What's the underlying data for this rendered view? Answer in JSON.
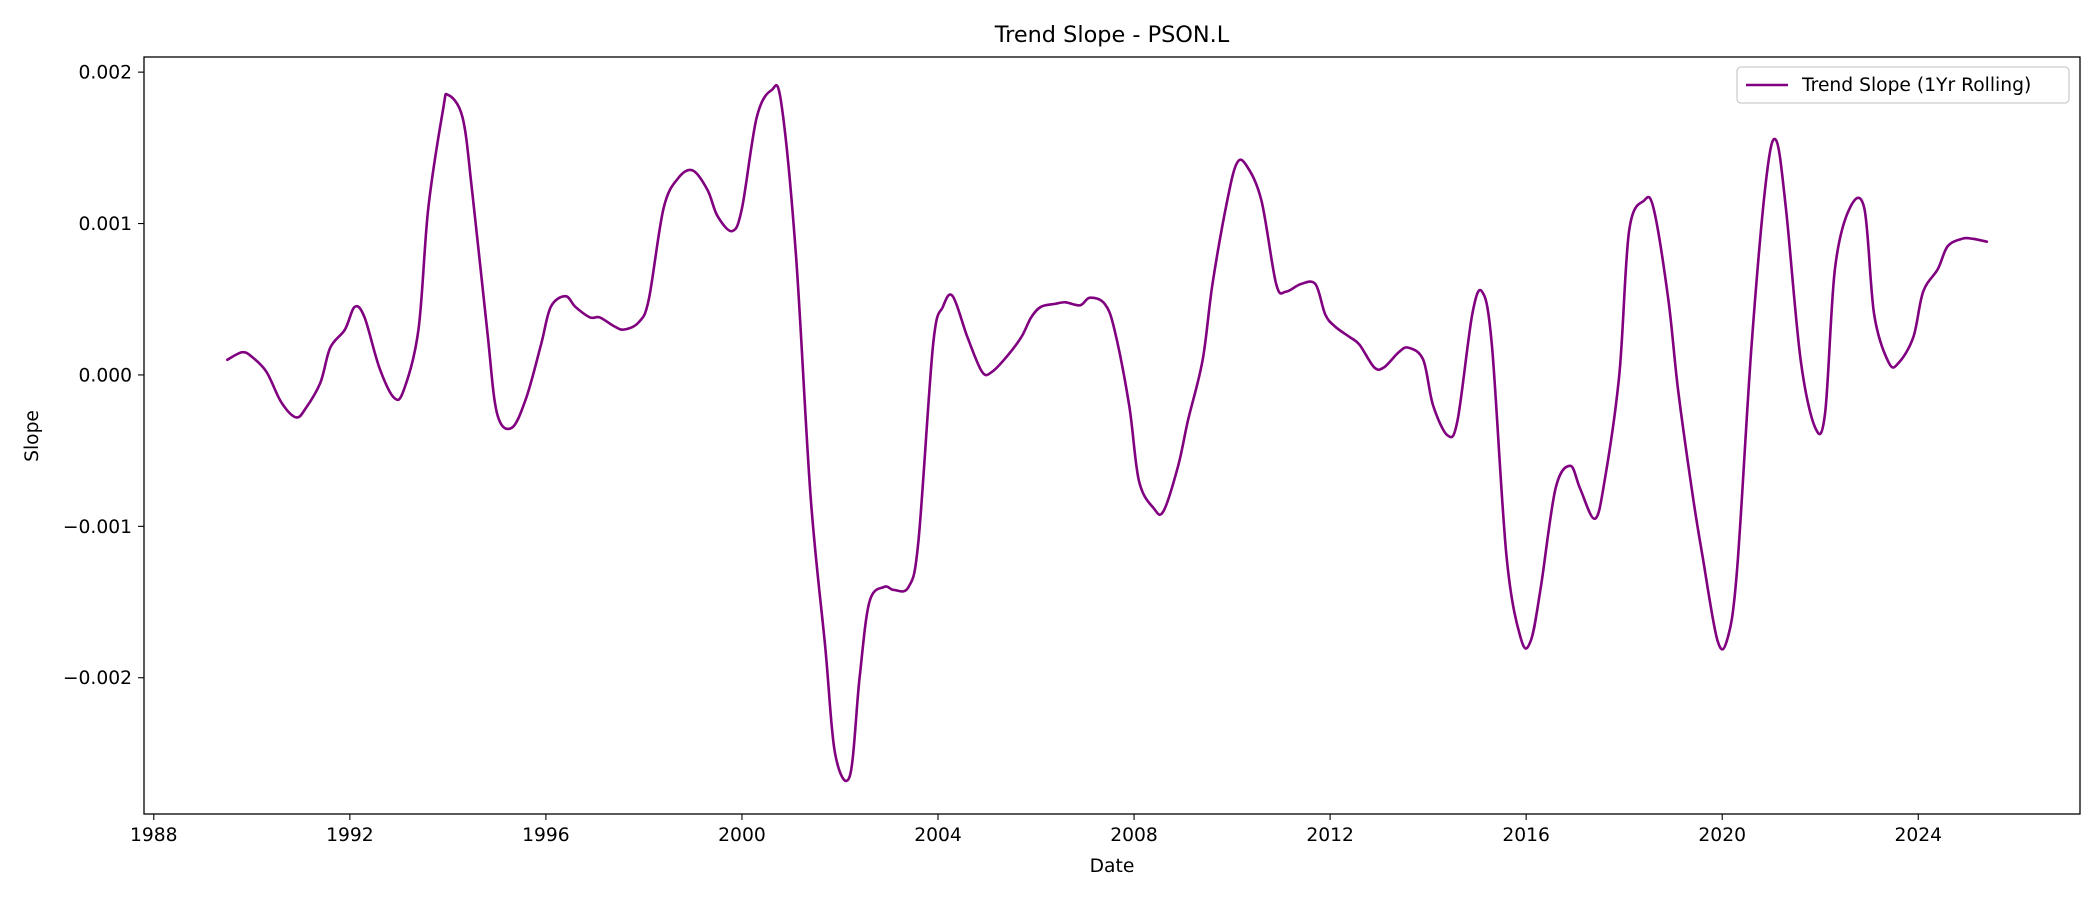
{
  "chart_data": {
    "type": "line",
    "title": "Trend Slope - PSON.L",
    "xlabel": "Date",
    "ylabel": "Slope",
    "xlim": [
      1987.8,
      2027.3
    ],
    "ylim": [
      -0.0029,
      0.0021
    ],
    "x_ticks": [
      1988,
      1992,
      1996,
      2000,
      2004,
      2008,
      2012,
      2016,
      2020,
      2024
    ],
    "x_tick_labels": [
      "1988",
      "1992",
      "1996",
      "2000",
      "2004",
      "2008",
      "2012",
      "2016",
      "2020",
      "2024"
    ],
    "y_ticks": [
      -0.002,
      -0.001,
      0.0,
      0.001,
      0.002
    ],
    "y_tick_labels": [
      "−0.002",
      "−0.001",
      "0.000",
      "0.001",
      "0.002"
    ],
    "grid": false,
    "legend_position": "top-right",
    "series": [
      {
        "name": "Trend Slope (1Yr Rolling)",
        "color": "#800080",
        "x": [
          1989.5,
          1989.8,
          1990.0,
          1990.3,
          1990.6,
          1990.9,
          1991.1,
          1991.4,
          1991.6,
          1991.9,
          1992.1,
          1992.3,
          1992.6,
          1992.9,
          1993.1,
          1993.4,
          1993.6,
          1993.9,
          1994.0,
          1994.3,
          1994.5,
          1994.8,
          1995.0,
          1995.3,
          1995.6,
          1995.9,
          1996.1,
          1996.4,
          1996.6,
          1996.9,
          1997.1,
          1997.4,
          1997.6,
          1997.9,
          1998.1,
          1998.4,
          1998.7,
          1999.0,
          1999.3,
          1999.5,
          1999.8,
          2000.0,
          2000.3,
          2000.6,
          2000.8,
          2001.1,
          2001.4,
          2001.7,
          2001.9,
          2002.2,
          2002.4,
          2002.6,
          2002.9,
          2003.1,
          2003.4,
          2003.6,
          2003.9,
          2004.1,
          2004.3,
          2004.6,
          2004.9,
          2005.1,
          2005.4,
          2005.7,
          2005.9,
          2006.1,
          2006.4,
          2006.6,
          2006.9,
          2007.1,
          2007.4,
          2007.6,
          2007.9,
          2008.1,
          2008.4,
          2008.6,
          2008.9,
          2009.1,
          2009.4,
          2009.6,
          2009.9,
          2010.1,
          2010.3,
          2010.6,
          2010.9,
          2011.1,
          2011.4,
          2011.7,
          2011.9,
          2012.1,
          2012.4,
          2012.6,
          2012.9,
          2013.1,
          2013.4,
          2013.6,
          2013.9,
          2014.1,
          2014.4,
          2014.6,
          2014.9,
          2015.1,
          2015.3,
          2015.6,
          2015.9,
          2016.1,
          2016.3,
          2016.6,
          2016.9,
          2017.1,
          2017.4,
          2017.6,
          2017.9,
          2018.1,
          2018.4,
          2018.6,
          2018.9,
          2019.1,
          2019.4,
          2019.6,
          2019.9,
          2020.1,
          2020.3,
          2020.6,
          2020.9,
          2021.1,
          2021.3,
          2021.6,
          2021.9,
          2022.1,
          2022.3,
          2022.6,
          2022.9,
          2023.1,
          2023.4,
          2023.6,
          2023.9,
          2024.1,
          2024.4,
          2024.6,
          2024.9,
          2025.1,
          2025.4
        ],
        "values": [
          0.0001,
          0.00015,
          0.00012,
          2e-05,
          -0.00018,
          -0.00028,
          -0.00022,
          -5e-05,
          0.00018,
          0.0003,
          0.00045,
          0.00038,
          5e-05,
          -0.00015,
          -0.0001,
          0.0003,
          0.0011,
          0.00175,
          0.00185,
          0.0017,
          0.0012,
          0.0003,
          -0.00025,
          -0.00035,
          -0.00015,
          0.0002,
          0.00045,
          0.00052,
          0.00045,
          0.00038,
          0.00038,
          0.00032,
          0.0003,
          0.00035,
          0.0005,
          0.0011,
          0.0013,
          0.00135,
          0.00122,
          0.00105,
          0.00095,
          0.0011,
          0.0017,
          0.00188,
          0.0018,
          0.0008,
          -0.0008,
          -0.0018,
          -0.0025,
          -0.00265,
          -0.002,
          -0.0015,
          -0.0014,
          -0.00142,
          -0.0014,
          -0.0011,
          0.0002,
          0.00045,
          0.00052,
          0.00025,
          2e-05,
          2e-05,
          0.00012,
          0.00025,
          0.00038,
          0.00045,
          0.00047,
          0.00048,
          0.00046,
          0.00051,
          0.00047,
          0.0003,
          -0.0002,
          -0.0007,
          -0.00088,
          -0.0009,
          -0.0006,
          -0.0003,
          0.0001,
          0.0006,
          0.00115,
          0.0014,
          0.00138,
          0.00115,
          0.0006,
          0.00055,
          0.0006,
          0.0006,
          0.0004,
          0.00032,
          0.00025,
          0.0002,
          5e-05,
          5e-05,
          0.00015,
          0.00018,
          0.0001,
          -0.0002,
          -0.0004,
          -0.0003,
          0.0004,
          0.00055,
          0.0002,
          -0.0012,
          -0.00175,
          -0.00175,
          -0.0014,
          -0.00075,
          -0.0006,
          -0.00075,
          -0.00095,
          -0.0007,
          0.0,
          0.00095,
          0.00115,
          0.0011,
          0.0005,
          -0.0001,
          -0.0008,
          -0.0012,
          -0.00175,
          -0.00175,
          -0.0013,
          0.0002,
          0.0013,
          0.00155,
          0.0011,
          0.0001,
          -0.00035,
          -0.00025,
          0.0007,
          0.0011,
          0.0011,
          0.0004,
          8e-05,
          8e-05,
          0.00025,
          0.00055,
          0.0007,
          0.00085,
          0.0009,
          0.0009,
          0.00088
        ]
      }
    ]
  }
}
